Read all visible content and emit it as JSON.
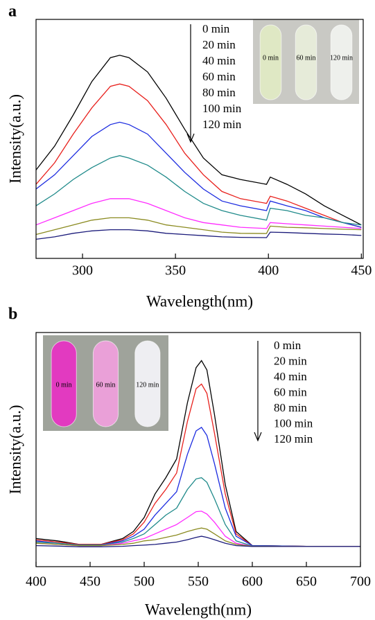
{
  "chart_data": [
    {
      "type": "line",
      "label": "a",
      "x_label": "Wavelength(nm)",
      "y_label": "Intensity(a.u.)",
      "x": [
        275,
        285,
        295,
        305,
        315,
        320,
        325,
        335,
        345,
        355,
        365,
        375,
        385,
        399,
        401,
        410,
        420,
        430,
        440,
        450
      ],
      "series": [
        {
          "name": "0 min",
          "color": "#000000",
          "values": [
            37,
            47,
            60,
            74,
            84,
            85,
            84,
            78,
            67,
            54,
            42,
            35,
            33,
            31,
            34,
            31,
            27,
            22,
            18,
            14
          ]
        },
        {
          "name": "20 min",
          "color": "#e8201c",
          "values": [
            31,
            40,
            52,
            63,
            72,
            73,
            72,
            66,
            56,
            44,
            35,
            28,
            25,
            23,
            26,
            24,
            21,
            18,
            15,
            13
          ]
        },
        {
          "name": "40 min",
          "color": "#1b2be0",
          "values": [
            29,
            35,
            43,
            51,
            56,
            57,
            56,
            52,
            44,
            36,
            29,
            24,
            22,
            20,
            24,
            22,
            20,
            17,
            15,
            13
          ]
        },
        {
          "name": "60 min",
          "color": "#1f8a8a",
          "values": [
            22,
            27,
            33,
            38,
            42,
            43,
            42,
            39,
            34,
            28,
            23,
            20,
            18,
            16,
            21,
            20,
            18,
            17,
            15,
            14
          ]
        },
        {
          "name": "80 min",
          "color": "#ff2bff",
          "values": [
            14,
            17,
            20,
            23,
            25,
            25,
            25,
            23,
            20,
            17,
            15,
            14,
            13,
            12.5,
            15,
            14.5,
            14,
            13.5,
            13,
            12.5
          ]
        },
        {
          "name": "100 min",
          "color": "#8a8a1f",
          "values": [
            10,
            12,
            14,
            16,
            17,
            17,
            17,
            16,
            14,
            13,
            12,
            11,
            10.5,
            10.4,
            13.5,
            13,
            12.8,
            12.5,
            12.2,
            12
          ]
        },
        {
          "name": "120 min",
          "color": "#1a1a7a",
          "values": [
            8,
            9,
            10.5,
            11.5,
            12,
            12,
            12,
            11.5,
            10.5,
            10,
            9.5,
            9,
            8.8,
            8.7,
            11,
            10.8,
            10.5,
            10.2,
            10,
            9.6
          ]
        }
      ],
      "xlim": [
        275,
        451
      ],
      "xticks": [
        300,
        350,
        400,
        450
      ],
      "ylim": [
        0,
        100
      ],
      "inset_labels": [
        "0 min",
        "60 min",
        "120 min"
      ]
    },
    {
      "type": "line",
      "label": "b",
      "x_label": "Wavelength(nm)",
      "y_label": "Intensity(a.u.)",
      "x": [
        400,
        420,
        440,
        460,
        480,
        490,
        500,
        510,
        520,
        530,
        540,
        548,
        553,
        558,
        565,
        575,
        585,
        600,
        650,
        700
      ],
      "series": [
        {
          "name": "0 min",
          "color": "#000000",
          "values": [
            12,
            11,
            9.5,
            9.5,
            12,
            15,
            21,
            31,
            38,
            46,
            70,
            85,
            88,
            84,
            65,
            35,
            15,
            9,
            8.7,
            8.6
          ]
        },
        {
          "name": "20 min",
          "color": "#e8201c",
          "values": [
            11.5,
            10.5,
            9.5,
            9.5,
            11.5,
            14,
            19,
            27,
            33,
            40,
            62,
            76,
            78,
            74,
            57,
            31,
            14,
            9,
            8.7,
            8.6
          ]
        },
        {
          "name": "40 min",
          "color": "#1b2be0",
          "values": [
            11,
            10,
            9.3,
            9.3,
            11,
            13,
            16,
            22,
            27,
            32,
            48,
            58,
            59.5,
            56,
            44,
            25,
            13,
            9,
            8.7,
            8.6
          ]
        },
        {
          "name": "60 min",
          "color": "#1f8a8a",
          "values": [
            10.5,
            10,
            9.2,
            9.2,
            10.5,
            12,
            14,
            18,
            22,
            25,
            33,
            37.5,
            38,
            36,
            29,
            18,
            11,
            8.8,
            8.7,
            8.6
          ]
        },
        {
          "name": "80 min",
          "color": "#ff2bff",
          "values": [
            10,
            9.5,
            9,
            9,
            10,
            11,
            12,
            14,
            16,
            18,
            21,
            23.5,
            23.7,
            22.5,
            19,
            13,
            10,
            8.7,
            8.6,
            8.6
          ]
        },
        {
          "name": "100 min",
          "color": "#8a8a1f",
          "values": [
            10,
            9.5,
            9,
            9,
            9.5,
            10,
            11,
            11.5,
            12.5,
            13.5,
            15,
            16,
            16.5,
            16,
            14,
            11,
            9.5,
            8.7,
            8.6,
            8.6
          ]
        },
        {
          "name": "120 min",
          "color": "#1a1a7a",
          "values": [
            9,
            8.8,
            8.5,
            8.5,
            8.7,
            9,
            9.2,
            9.5,
            10,
            10.5,
            11.5,
            12.5,
            13,
            12.5,
            11.5,
            10,
            9,
            8.6,
            8.6,
            8.6
          ]
        }
      ],
      "xlim": [
        400,
        700
      ],
      "xticks": [
        400,
        450,
        500,
        550,
        600,
        650,
        700
      ],
      "ylim": [
        0,
        100
      ],
      "inset_labels": [
        "0 min",
        "60 min",
        "120 min"
      ]
    }
  ]
}
